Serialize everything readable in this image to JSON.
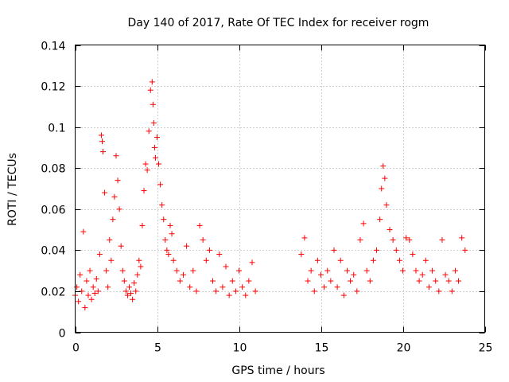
{
  "chart_data": {
    "type": "scatter",
    "title": "Day 140 of 2017, Rate Of TEC Index for receiver rogm",
    "xlabel": "GPS time / hours",
    "ylabel": "ROTI / TECUs",
    "xlim": [
      0,
      25
    ],
    "ylim": [
      0,
      0.14
    ],
    "xticks": [
      0,
      5,
      10,
      15,
      20,
      25
    ],
    "xtick_labels": [
      "0",
      "5",
      "10",
      "15",
      "20",
      "25"
    ],
    "yticks": [
      0,
      0.02,
      0.04,
      0.06,
      0.08,
      0.1,
      0.12,
      0.14
    ],
    "ytick_labels": [
      "0",
      "0.02",
      "0.04",
      "0.06",
      "0.08",
      "0.1",
      "0.12",
      "0.14"
    ],
    "grid": true,
    "marker": "+",
    "color": "#ff0000",
    "data_gap_hours": [
      11.1,
      13.8
    ],
    "series": [
      {
        "x": [
          0.0,
          0.1,
          0.2,
          0.3,
          0.4,
          0.5,
          0.6,
          0.7,
          0.8,
          0.9,
          1.0,
          1.1,
          1.2,
          1.3,
          1.4,
          1.5,
          1.6,
          1.65,
          1.7,
          1.8,
          1.9,
          2.0,
          2.1,
          2.2,
          2.3,
          2.4,
          2.5,
          2.6,
          2.7,
          2.8,
          2.9,
          3.0,
          3.1,
          3.2,
          3.3,
          3.4,
          3.5,
          3.6,
          3.7,
          3.8,
          3.9,
          4.0,
          4.1,
          4.2,
          4.3,
          4.4,
          4.5,
          4.6,
          4.7,
          4.75,
          4.8,
          4.85,
          4.9,
          5.0,
          5.1,
          5.2,
          5.3,
          5.4,
          5.5,
          5.6,
          5.7,
          5.8,
          5.9,
          6.0,
          6.2,
          6.4,
          6.6,
          6.8,
          7.0,
          7.2,
          7.4,
          7.6,
          7.8,
          8.0,
          8.2,
          8.4,
          8.6,
          8.8,
          9.0,
          9.2,
          9.4,
          9.6,
          9.8,
          10.0,
          10.2,
          10.4,
          10.6,
          10.8,
          11.0,
          13.8,
          14.0,
          14.2,
          14.4,
          14.6,
          14.8,
          15.0,
          15.2,
          15.4,
          15.6,
          15.8,
          16.0,
          16.2,
          16.4,
          16.6,
          16.8,
          17.0,
          17.2,
          17.4,
          17.6,
          17.8,
          18.0,
          18.2,
          18.4,
          18.6,
          18.7,
          18.8,
          18.9,
          19.0,
          19.2,
          19.4,
          19.6,
          19.8,
          20.0,
          20.2,
          20.4,
          20.6,
          20.8,
          21.0,
          21.2,
          21.4,
          21.6,
          21.8,
          22.0,
          22.2,
          22.4,
          22.6,
          22.8,
          23.0,
          23.2,
          23.4,
          23.6,
          23.8
        ],
        "y": [
          0.018,
          0.022,
          0.015,
          0.028,
          0.02,
          0.049,
          0.012,
          0.025,
          0.018,
          0.03,
          0.016,
          0.022,
          0.019,
          0.026,
          0.02,
          0.038,
          0.096,
          0.093,
          0.088,
          0.068,
          0.03,
          0.022,
          0.045,
          0.035,
          0.055,
          0.066,
          0.086,
          0.074,
          0.06,
          0.042,
          0.03,
          0.025,
          0.02,
          0.018,
          0.022,
          0.019,
          0.016,
          0.024,
          0.02,
          0.028,
          0.035,
          0.032,
          0.052,
          0.069,
          0.082,
          0.079,
          0.098,
          0.118,
          0.122,
          0.111,
          0.102,
          0.09,
          0.085,
          0.095,
          0.082,
          0.072,
          0.062,
          0.055,
          0.045,
          0.04,
          0.038,
          0.052,
          0.048,
          0.035,
          0.03,
          0.025,
          0.028,
          0.042,
          0.022,
          0.03,
          0.02,
          0.052,
          0.045,
          0.035,
          0.04,
          0.025,
          0.02,
          0.038,
          0.022,
          0.032,
          0.018,
          0.025,
          0.02,
          0.03,
          0.022,
          0.018,
          0.025,
          0.034,
          0.02,
          0.038,
          0.046,
          0.025,
          0.03,
          0.02,
          0.035,
          0.028,
          0.022,
          0.03,
          0.025,
          0.04,
          0.022,
          0.035,
          0.018,
          0.03,
          0.025,
          0.028,
          0.02,
          0.045,
          0.053,
          0.03,
          0.025,
          0.035,
          0.04,
          0.055,
          0.07,
          0.081,
          0.075,
          0.062,
          0.05,
          0.045,
          0.04,
          0.035,
          0.03,
          0.046,
          0.045,
          0.038,
          0.03,
          0.025,
          0.028,
          0.035,
          0.022,
          0.03,
          0.025,
          0.02,
          0.045,
          0.028,
          0.025,
          0.02,
          0.03,
          0.025,
          0.046,
          0.04
        ]
      }
    ]
  }
}
